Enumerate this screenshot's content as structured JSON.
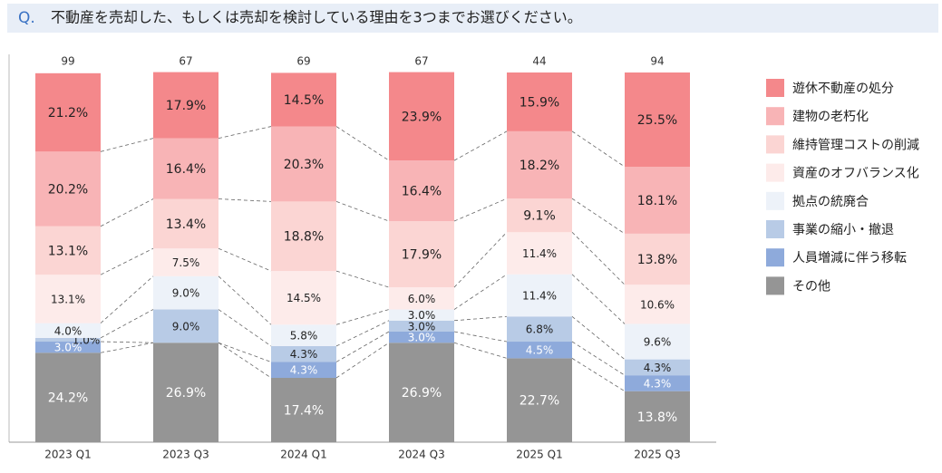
{
  "chart_data": {
    "type": "stacked_bar",
    "title_marker": "Q.",
    "title": "不動産を売却した、もしくは売却を検討している理由を3つまでお選びください。",
    "categories": [
      "2023 Q1",
      "2023 Q3",
      "2024 Q1",
      "2024 Q3",
      "2025 Q1",
      "2025 Q3"
    ],
    "counts": [
      99,
      67,
      69,
      67,
      44,
      94
    ],
    "ylim": [
      0,
      100
    ],
    "legend": "right",
    "series": [
      {
        "name": "遊休不動産の処分",
        "color": "#f4888b",
        "values": [
          21.2,
          17.9,
          14.5,
          23.9,
          15.9,
          25.5
        ],
        "value_labels": [
          "21.2%",
          "17.9%",
          "14.5%",
          "23.9%",
          "15.9%",
          "25.5%"
        ]
      },
      {
        "name": "建物の老朽化",
        "color": "#f8b4b6",
        "values": [
          20.2,
          16.4,
          20.3,
          16.4,
          18.2,
          18.1
        ],
        "value_labels": [
          "20.2%",
          "16.4%",
          "20.3%",
          "16.4%",
          "18.2%",
          "18.1%"
        ]
      },
      {
        "name": "維持管理コストの削減",
        "color": "#fbd5d3",
        "values": [
          13.1,
          13.4,
          18.8,
          17.9,
          9.1,
          13.8
        ],
        "value_labels": [
          "13.1%",
          "13.4%",
          "18.8%",
          "17.9%",
          "9.1%",
          "13.8%"
        ]
      },
      {
        "name": "資産のオフバランス化",
        "color": "#fdebea",
        "values": [
          13.1,
          7.5,
          14.5,
          6.0,
          11.4,
          10.6
        ],
        "value_labels": [
          "13.1%",
          "7.5%",
          "14.5%",
          "6.0%",
          "11.4%",
          "10.6%"
        ]
      },
      {
        "name": "拠点の統廃合",
        "color": "#edf2f9",
        "values": [
          4.0,
          9.0,
          5.8,
          3.0,
          11.4,
          9.6
        ],
        "value_labels": [
          "4.0%",
          "9.0%",
          "5.8%",
          "3.0%",
          "11.4%",
          "9.6%"
        ]
      },
      {
        "name": "事業の縮小・撤退",
        "color": "#b8cbe6",
        "values": [
          1.0,
          9.0,
          4.3,
          3.0,
          6.8,
          4.3
        ],
        "value_labels": [
          "1.0%",
          "9.0%",
          "4.3%",
          "3.0%",
          "6.8%",
          "4.3%"
        ]
      },
      {
        "name": "人員増減に伴う移転",
        "color": "#8eaadb",
        "values": [
          3.0,
          0,
          4.3,
          3.0,
          4.5,
          4.3
        ],
        "value_labels": [
          "3.0%",
          null,
          "4.3%",
          "3.0%",
          "4.5%",
          "4.3%"
        ]
      },
      {
        "name": "その他",
        "color": "#959595",
        "values": [
          24.2,
          26.9,
          17.4,
          26.9,
          22.7,
          13.8
        ],
        "value_labels": [
          "24.2%",
          "26.9%",
          "17.4%",
          "26.9%",
          "22.7%",
          "13.8%"
        ]
      }
    ]
  }
}
